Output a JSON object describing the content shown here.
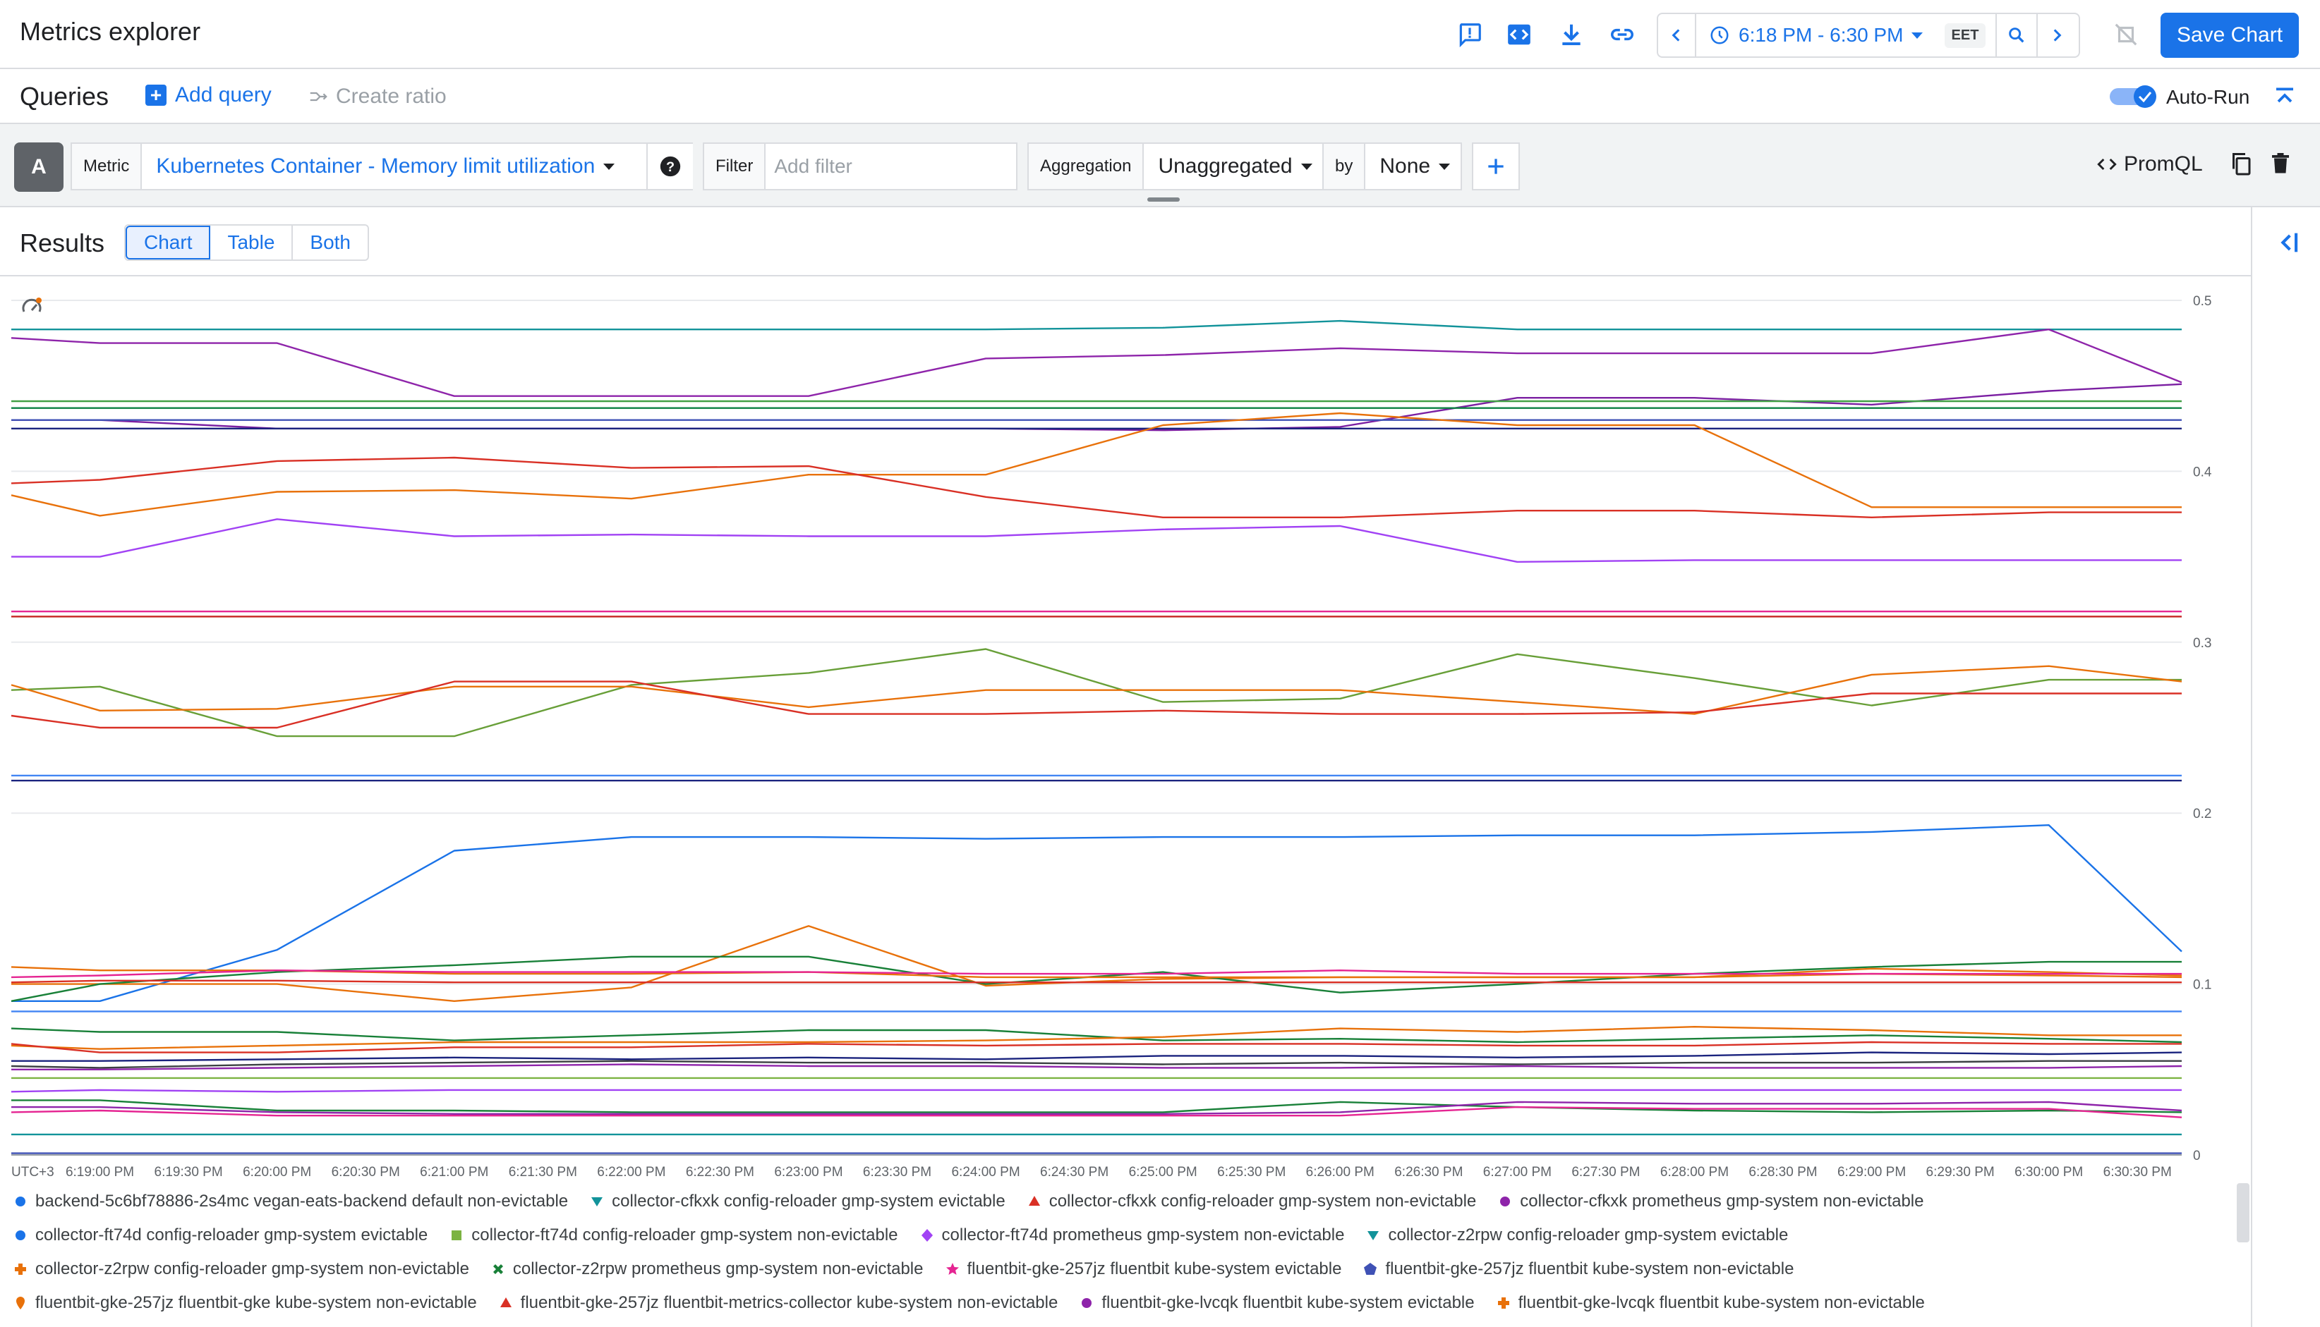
{
  "header": {
    "title": "Metrics explorer",
    "time_range": "6:18 PM - 6:30 PM",
    "timezone": "EET",
    "save_label": "Save Chart"
  },
  "queries": {
    "title": "Queries",
    "add_query": "Add query",
    "create_ratio": "Create ratio",
    "auto_run": "Auto-Run",
    "auto_run_enabled": true
  },
  "query_a": {
    "letter": "A",
    "metric_label": "Metric",
    "metric_value": "Kubernetes Container - Memory limit utilization",
    "filter_label": "Filter",
    "filter_placeholder": "Add filter",
    "aggregation_label": "Aggregation",
    "aggregation_value": "Unaggregated",
    "by_label": "by",
    "by_value": "None",
    "promql_label": "PromQL"
  },
  "results": {
    "title": "Results",
    "tabs": [
      {
        "label": "Chart",
        "active": true
      },
      {
        "label": "Table",
        "active": false
      },
      {
        "label": "Both",
        "active": false
      }
    ]
  },
  "chart_data": {
    "type": "line",
    "timezone_label": "UTC+3",
    "ylim": [
      0,
      0.5
    ],
    "y_ticks": [
      "0",
      "0.1",
      "0.2",
      "0.3",
      "0.4",
      "0.5"
    ],
    "x_ticks": [
      "6:19:00 PM",
      "6:19:30 PM",
      "6:20:00 PM",
      "6:20:30 PM",
      "6:21:00 PM",
      "6:21:30 PM",
      "6:22:00 PM",
      "6:22:30 PM",
      "6:23:00 PM",
      "6:23:30 PM",
      "6:24:00 PM",
      "6:24:30 PM",
      "6:25:00 PM",
      "6:25:30 PM",
      "6:26:00 PM",
      "6:26:30 PM",
      "6:27:00 PM",
      "6:27:30 PM",
      "6:28:00 PM",
      "6:28:30 PM",
      "6:29:00 PM",
      "6:29:30 PM",
      "6:30:00 PM",
      "6:30:30 PM"
    ],
    "x_minutes": [
      18.5,
      19,
      20,
      21,
      22,
      23,
      24,
      25,
      26,
      27,
      28,
      29,
      30,
      30.75
    ],
    "grid": true,
    "legend_position": "bottom",
    "series": [
      {
        "color": "#12939a",
        "values": [
          0.483,
          0.483,
          0.483,
          0.483,
          0.483,
          0.483,
          0.483,
          0.484,
          0.488,
          0.483,
          0.483,
          0.483,
          0.483,
          0.483
        ]
      },
      {
        "color": "#8e24aa",
        "values": [
          0.478,
          0.475,
          0.475,
          0.444,
          0.444,
          0.444,
          0.466,
          0.468,
          0.472,
          0.469,
          0.469,
          0.469,
          0.483,
          0.452
        ]
      },
      {
        "color": "#7b1fa2",
        "values": [
          0.43,
          0.43,
          0.425,
          0.425,
          0.425,
          0.425,
          0.425,
          0.424,
          0.426,
          0.443,
          0.443,
          0.439,
          0.447,
          0.451
        ]
      },
      {
        "color": "#43a047",
        "values": [
          0.441,
          0.441,
          0.441,
          0.441,
          0.441,
          0.441,
          0.441,
          0.441,
          0.441,
          0.441,
          0.441,
          0.441,
          0.441,
          0.441
        ]
      },
      {
        "color": "#0b8043",
        "values": [
          0.437,
          0.437,
          0.437,
          0.437,
          0.437,
          0.437,
          0.437,
          0.437,
          0.437,
          0.437,
          0.437,
          0.437,
          0.437,
          0.437
        ]
      },
      {
        "color": "#3f51b5",
        "values": [
          0.43,
          0.43,
          0.43,
          0.43,
          0.43,
          0.43,
          0.43,
          0.43,
          0.43,
          0.43,
          0.43,
          0.43,
          0.43,
          0.43
        ]
      },
      {
        "color": "#1a237e",
        "values": [
          0.425,
          0.425,
          0.425,
          0.425,
          0.425,
          0.425,
          0.425,
          0.425,
          0.425,
          0.425,
          0.425,
          0.425,
          0.425,
          0.425
        ]
      },
      {
        "color": "#e8710a",
        "values": [
          0.386,
          0.374,
          0.388,
          0.389,
          0.384,
          0.398,
          0.398,
          0.427,
          0.434,
          0.427,
          0.427,
          0.379,
          0.379,
          0.379
        ]
      },
      {
        "color": "#d93025",
        "values": [
          0.393,
          0.395,
          0.406,
          0.408,
          0.402,
          0.403,
          0.385,
          0.373,
          0.373,
          0.377,
          0.377,
          0.373,
          0.376,
          0.376
        ]
      },
      {
        "color": "#a142f4",
        "values": [
          0.35,
          0.35,
          0.372,
          0.362,
          0.363,
          0.362,
          0.362,
          0.366,
          0.368,
          0.347,
          0.348,
          0.348,
          0.348,
          0.348
        ]
      },
      {
        "color": "#e52592",
        "values": [
          0.318,
          0.318,
          0.318,
          0.318,
          0.318,
          0.318,
          0.318,
          0.318,
          0.318,
          0.318,
          0.318,
          0.318,
          0.318,
          0.318
        ]
      },
      {
        "color": "#c5221f",
        "values": [
          0.315,
          0.315,
          0.315,
          0.315,
          0.315,
          0.315,
          0.315,
          0.315,
          0.315,
          0.315,
          0.315,
          0.315,
          0.315,
          0.315
        ]
      },
      {
        "color": "#689f38",
        "values": [
          0.272,
          0.274,
          0.245,
          0.245,
          0.275,
          0.282,
          0.296,
          0.265,
          0.267,
          0.293,
          0.279,
          0.263,
          0.278,
          0.278
        ]
      },
      {
        "color": "#e8710a",
        "values": [
          0.275,
          0.26,
          0.261,
          0.274,
          0.274,
          0.262,
          0.272,
          0.272,
          0.272,
          0.265,
          0.258,
          0.281,
          0.286,
          0.277
        ]
      },
      {
        "color": "#d93025",
        "values": [
          0.257,
          0.25,
          0.25,
          0.277,
          0.277,
          0.258,
          0.258,
          0.26,
          0.258,
          0.258,
          0.259,
          0.27,
          0.27,
          0.27
        ]
      },
      {
        "color": "#4285f4",
        "values": [
          0.222,
          0.222,
          0.222,
          0.222,
          0.222,
          0.222,
          0.222,
          0.222,
          0.222,
          0.222,
          0.222,
          0.222,
          0.222,
          0.222
        ]
      },
      {
        "color": "#1a237e",
        "values": [
          0.219,
          0.219,
          0.219,
          0.219,
          0.219,
          0.219,
          0.219,
          0.219,
          0.219,
          0.219,
          0.219,
          0.219,
          0.219,
          0.219
        ]
      },
      {
        "color": "#1a73e8",
        "values": [
          0.09,
          0.09,
          0.12,
          0.178,
          0.186,
          0.186,
          0.185,
          0.186,
          0.186,
          0.187,
          0.187,
          0.189,
          0.193,
          0.119
        ]
      },
      {
        "color": "#e8710a",
        "values": [
          0.1,
          0.1,
          0.1,
          0.09,
          0.098,
          0.134,
          0.099,
          0.103,
          0.104,
          0.104,
          0.104,
          0.106,
          0.105,
          0.104
        ]
      },
      {
        "color": "#188038",
        "values": [
          0.09,
          0.1,
          0.107,
          0.111,
          0.116,
          0.116,
          0.1,
          0.107,
          0.095,
          0.1,
          0.106,
          0.11,
          0.113,
          0.113
        ]
      },
      {
        "color": "#e8710a",
        "values": [
          0.11,
          0.108,
          0.108,
          0.106,
          0.106,
          0.107,
          0.104,
          0.104,
          0.104,
          0.104,
          0.104,
          0.109,
          0.107,
          0.105
        ]
      },
      {
        "color": "#e52592",
        "values": [
          0.104,
          0.105,
          0.108,
          0.107,
          0.107,
          0.107,
          0.106,
          0.106,
          0.108,
          0.106,
          0.106,
          0.106,
          0.106,
          0.106
        ]
      },
      {
        "color": "#d93025",
        "values": [
          0.101,
          0.102,
          0.102,
          0.101,
          0.101,
          0.101,
          0.101,
          0.101,
          0.101,
          0.101,
          0.101,
          0.101,
          0.101,
          0.101
        ]
      },
      {
        "color": "#4285f4",
        "values": [
          0.084,
          0.084,
          0.084,
          0.084,
          0.084,
          0.084,
          0.084,
          0.084,
          0.084,
          0.084,
          0.084,
          0.084,
          0.084,
          0.084
        ]
      },
      {
        "color": "#188038",
        "values": [
          0.074,
          0.072,
          0.072,
          0.067,
          0.07,
          0.073,
          0.073,
          0.067,
          0.068,
          0.066,
          0.068,
          0.07,
          0.068,
          0.066
        ]
      },
      {
        "color": "#e8710a",
        "values": [
          0.064,
          0.062,
          0.064,
          0.066,
          0.066,
          0.066,
          0.067,
          0.069,
          0.074,
          0.072,
          0.075,
          0.073,
          0.07,
          0.07
        ]
      },
      {
        "color": "#d93025",
        "values": [
          0.065,
          0.06,
          0.06,
          0.063,
          0.063,
          0.065,
          0.064,
          0.065,
          0.065,
          0.064,
          0.064,
          0.066,
          0.065,
          0.065
        ]
      },
      {
        "color": "#3c4043",
        "values": [
          0.052,
          0.051,
          0.053,
          0.054,
          0.055,
          0.054,
          0.054,
          0.053,
          0.054,
          0.053,
          0.054,
          0.054,
          0.055,
          0.055
        ]
      },
      {
        "color": "#1a237e",
        "values": [
          0.055,
          0.055,
          0.056,
          0.057,
          0.056,
          0.057,
          0.056,
          0.058,
          0.058,
          0.057,
          0.058,
          0.06,
          0.059,
          0.06
        ]
      },
      {
        "color": "#8e24aa",
        "values": [
          0.05,
          0.05,
          0.051,
          0.052,
          0.053,
          0.052,
          0.052,
          0.051,
          0.051,
          0.052,
          0.051,
          0.051,
          0.051,
          0.052
        ]
      },
      {
        "color": "#7cb342",
        "values": [
          0.045,
          0.045,
          0.045,
          0.045,
          0.045,
          0.045,
          0.045,
          0.045,
          0.045,
          0.045,
          0.045,
          0.045,
          0.045,
          0.045
        ]
      },
      {
        "color": "#a142f4",
        "values": [
          0.037,
          0.038,
          0.037,
          0.038,
          0.038,
          0.038,
          0.038,
          0.038,
          0.038,
          0.038,
          0.038,
          0.038,
          0.038,
          0.038
        ]
      },
      {
        "color": "#188038",
        "values": [
          0.032,
          0.032,
          0.026,
          0.026,
          0.025,
          0.025,
          0.025,
          0.025,
          0.031,
          0.028,
          0.026,
          0.025,
          0.026,
          0.025
        ]
      },
      {
        "color": "#8e24aa",
        "values": [
          0.028,
          0.028,
          0.025,
          0.024,
          0.024,
          0.024,
          0.024,
          0.024,
          0.025,
          0.031,
          0.03,
          0.03,
          0.031,
          0.026
        ]
      },
      {
        "color": "#e52592",
        "values": [
          0.025,
          0.026,
          0.023,
          0.023,
          0.023,
          0.023,
          0.023,
          0.023,
          0.023,
          0.028,
          0.027,
          0.027,
          0.027,
          0.022
        ]
      },
      {
        "color": "#12939a",
        "values": [
          0.012,
          0.012,
          0.012,
          0.012,
          0.012,
          0.012,
          0.012,
          0.012,
          0.012,
          0.012,
          0.012,
          0.012,
          0.012,
          0.012
        ]
      },
      {
        "color": "#3f51b5",
        "values": [
          0.001,
          0.001,
          0.001,
          0.001,
          0.001,
          0.001,
          0.001,
          0.001,
          0.001,
          0.001,
          0.001,
          0.001,
          0.001,
          0.001
        ]
      }
    ]
  },
  "legend": {
    "rows": [
      [
        {
          "label": "backend-5c6bf78886-2s4mc vegan-eats-backend default non-evictable",
          "shape": "circle",
          "color": "#1a73e8"
        },
        {
          "label": "collector-cfkxk config-reloader gmp-system evictable",
          "shape": "tri-down",
          "color": "#12939a"
        },
        {
          "label": "collector-cfkxk config-reloader gmp-system non-evictable",
          "shape": "tri-up",
          "color": "#d93025"
        },
        {
          "label": "collector-cfkxk prometheus gmp-system non-evictable",
          "shape": "circle",
          "color": "#8e24aa"
        }
      ],
      [
        {
          "label": "collector-ft74d config-reloader gmp-system evictable",
          "shape": "circle",
          "color": "#1a73e8"
        },
        {
          "label": "collector-ft74d config-reloader gmp-system non-evictable",
          "shape": "square",
          "color": "#7cb342"
        },
        {
          "label": "collector-ft74d prometheus gmp-system non-evictable",
          "shape": "diamond",
          "color": "#a142f4"
        },
        {
          "label": "collector-z2rpw config-reloader gmp-system evictable",
          "shape": "tri-down",
          "color": "#12939a"
        }
      ],
      [
        {
          "label": "collector-z2rpw config-reloader gmp-system non-evictable",
          "shape": "plus",
          "color": "#e8710a"
        },
        {
          "label": "collector-z2rpw prometheus gmp-system non-evictable",
          "shape": "cross",
          "color": "#188038"
        },
        {
          "label": "fluentbit-gke-257jz fluentbit kube-system evictable",
          "shape": "star",
          "color": "#e52592"
        },
        {
          "label": "fluentbit-gke-257jz fluentbit kube-system non-evictable",
          "shape": "pentagon",
          "color": "#3f51b5"
        }
      ],
      [
        {
          "label": "fluentbit-gke-257jz fluentbit-gke kube-system non-evictable",
          "shape": "pin",
          "color": "#e8710a"
        },
        {
          "label": "fluentbit-gke-257jz fluentbit-metrics-collector kube-system non-evictable",
          "shape": "tri-up",
          "color": "#d93025"
        },
        {
          "label": "fluentbit-gke-lvcqk fluentbit kube-system evictable",
          "shape": "circle",
          "color": "#8e24aa"
        },
        {
          "label": "fluentbit-gke-lvcqk fluentbit kube-system non-evictable",
          "shape": "plus",
          "color": "#e8710a"
        }
      ]
    ]
  },
  "icons": {
    "accent": "#1a73e8",
    "toolbar": [
      "feedback-icon",
      "code-icon",
      "download-icon",
      "link-icon",
      "chevron-left-icon",
      "clock-icon",
      "zoom-icon",
      "chevron-right-icon",
      "sync-off-icon"
    ]
  }
}
